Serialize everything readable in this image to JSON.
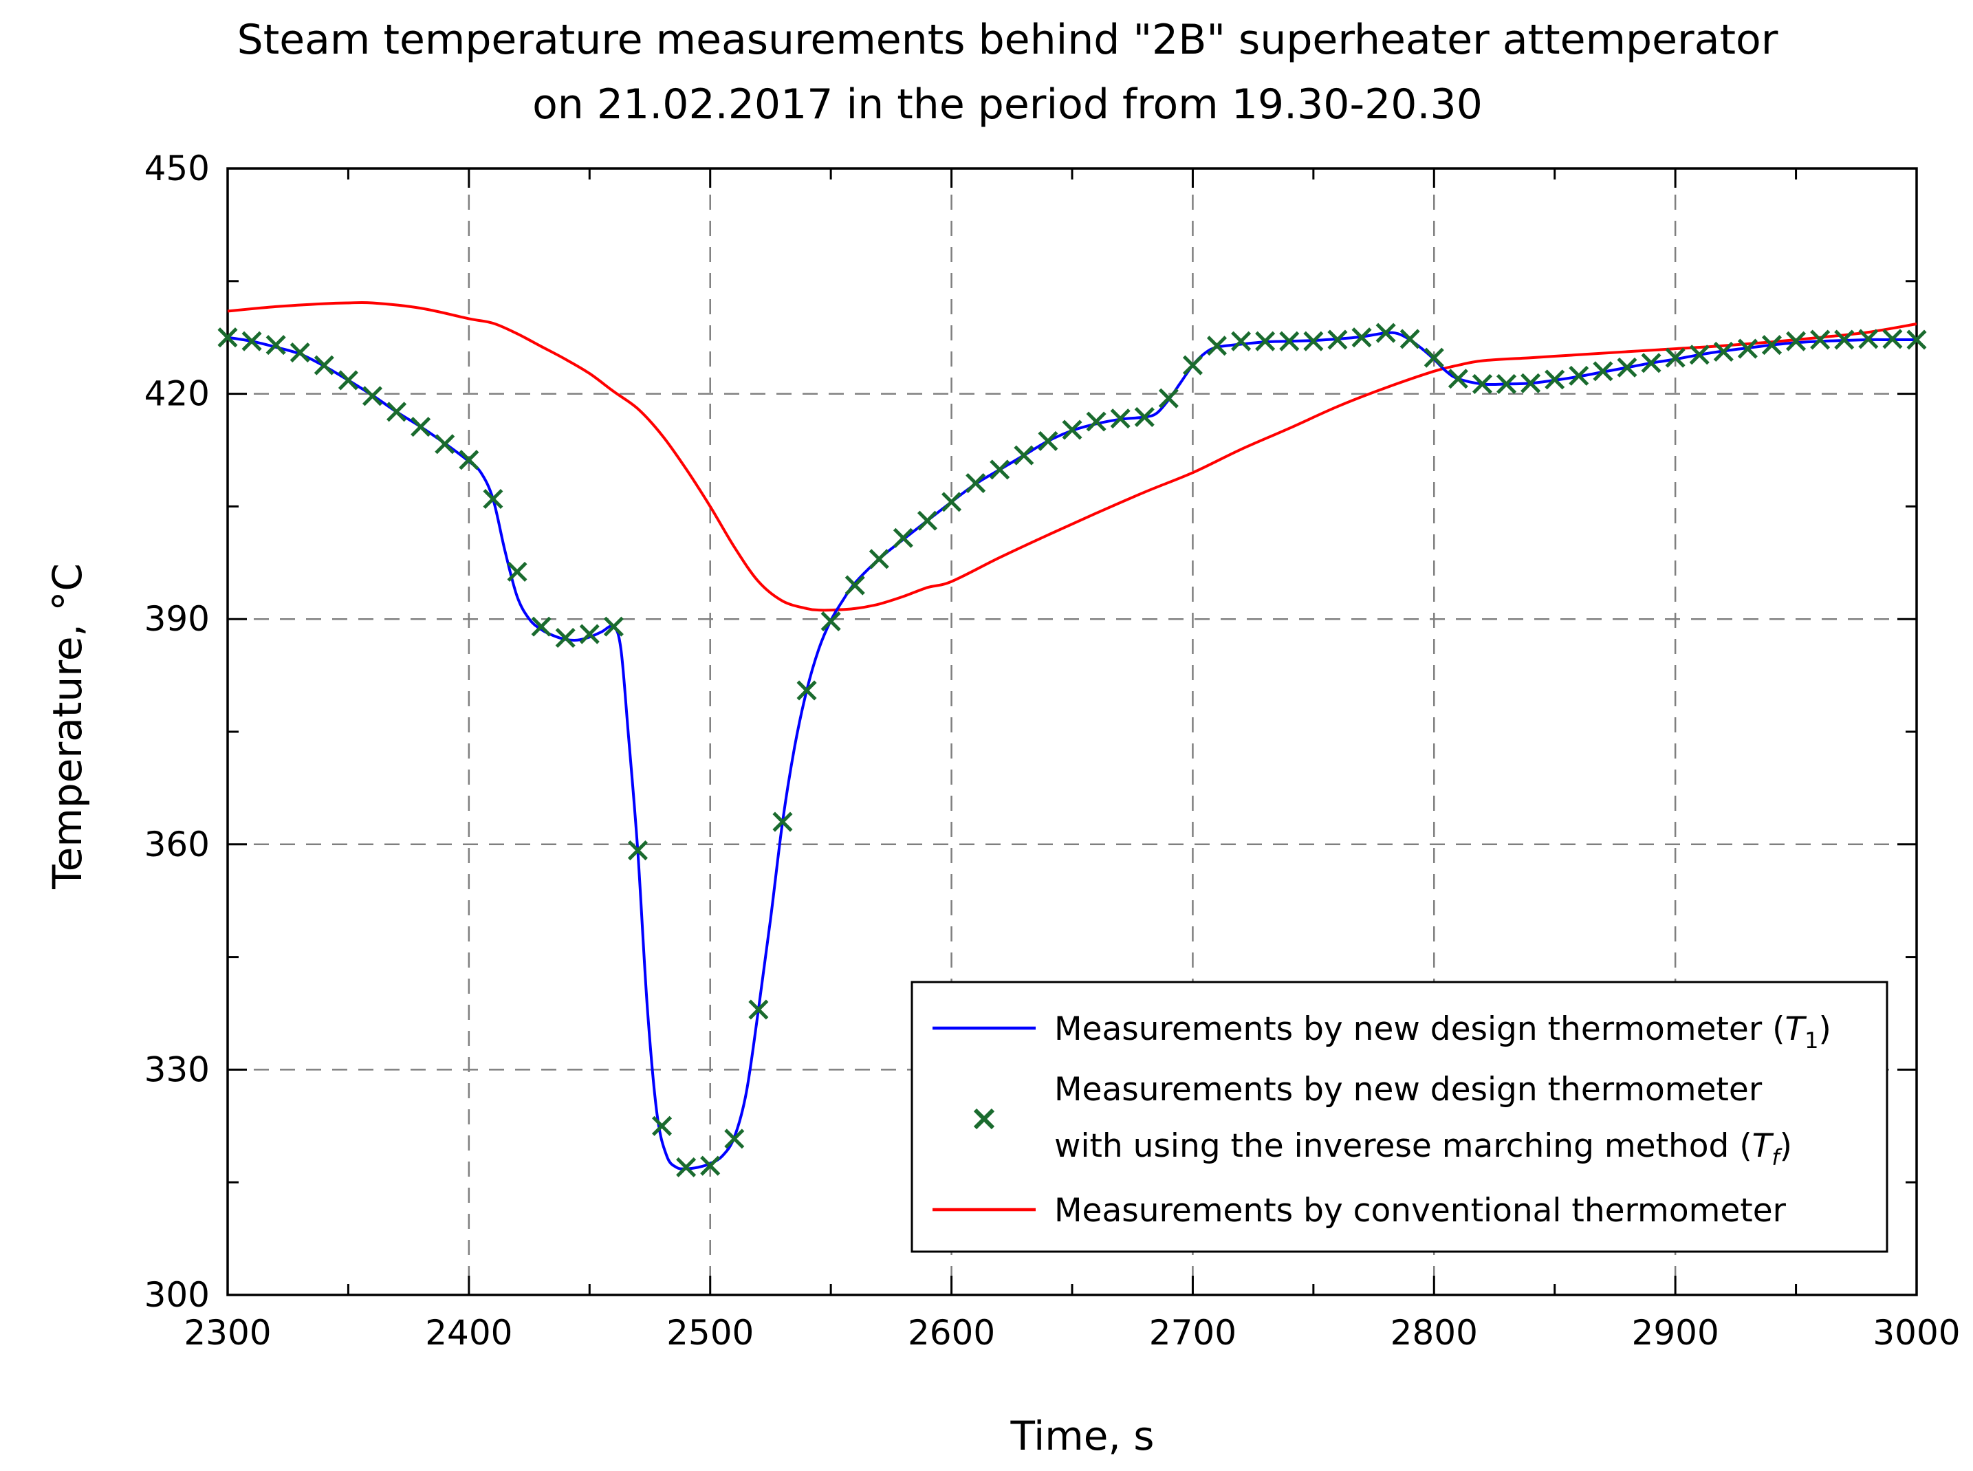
{
  "chart_data": {
    "type": "line",
    "title": "Steam temperature measurements behind \"2B\" superheater attemperator",
    "subtitle": "on 21.02.2017 in the period from 19.30-20.30",
    "xlabel": "Time, s",
    "ylabel": "Temperature, °C",
    "xlim": [
      2300,
      3000
    ],
    "ylim": [
      300,
      450
    ],
    "xticks": [
      2300,
      2400,
      2500,
      2600,
      2700,
      2800,
      2900,
      3000
    ],
    "yticks": [
      300,
      330,
      360,
      390,
      420,
      450
    ],
    "ytick_minor_step": 15,
    "xtick_minor_step": 50,
    "grid": true,
    "legend": {
      "placement": "bottom-right",
      "entries": [
        {
          "text": "Measurements by new design thermometer (",
          "math": "T",
          "sub": "1",
          "suffix": ")",
          "style": "line",
          "color": "#0000ff"
        },
        {
          "text": "Measurements by new design thermometer",
          "text2": "with using the inverese marching method (",
          "math": "T",
          "sub": "f",
          "suffix": ")",
          "style": "marker",
          "color": "#1a6b2e"
        },
        {
          "text": "Measurements by conventional thermometer",
          "style": "line",
          "color": "#ff0000"
        }
      ]
    },
    "series": [
      {
        "name": "Measurements by new design thermometer (T1)",
        "style": "line",
        "color": "#0000ff",
        "x": [
          2300,
          2310,
          2320,
          2330,
          2340,
          2350,
          2360,
          2370,
          2380,
          2390,
          2400,
          2405,
          2410,
          2415,
          2420,
          2425,
          2430,
          2435,
          2440,
          2445,
          2450,
          2455,
          2460,
          2463,
          2466,
          2470,
          2474,
          2478,
          2482,
          2486,
          2490,
          2495,
          2500,
          2505,
          2510,
          2515,
          2520,
          2525,
          2530,
          2535,
          2540,
          2545,
          2550,
          2555,
          2560,
          2570,
          2580,
          2590,
          2600,
          2610,
          2620,
          2630,
          2640,
          2650,
          2660,
          2670,
          2680,
          2685,
          2690,
          2695,
          2700,
          2705,
          2710,
          2720,
          2730,
          2740,
          2750,
          2760,
          2770,
          2780,
          2785,
          2790,
          2795,
          2800,
          2805,
          2810,
          2820,
          2830,
          2840,
          2850,
          2860,
          2870,
          2880,
          2890,
          2900,
          2910,
          2920,
          2930,
          2940,
          2950,
          2960,
          2970,
          2980,
          2990,
          3000
        ],
        "y": [
          427.5,
          427,
          426.2,
          425.3,
          423.7,
          421.8,
          419.8,
          417.6,
          415.6,
          413.4,
          411,
          409.5,
          406,
          399,
          393,
          390,
          388.6,
          387.8,
          387.3,
          387.2,
          387.6,
          388.3,
          389,
          386,
          375,
          359,
          338,
          324,
          318.5,
          317,
          316.8,
          317,
          317.5,
          318.5,
          321,
          327,
          338,
          350,
          363,
          373,
          380.5,
          386,
          389.8,
          392.5,
          394.8,
          398,
          400.6,
          403.1,
          405.6,
          408,
          409.9,
          411.8,
          413.7,
          415.1,
          416,
          416.6,
          416.9,
          417.4,
          419.2,
          421.5,
          423.8,
          425.4,
          426.2,
          426.6,
          426.9,
          427,
          427.1,
          427.3,
          427.6,
          428.1,
          428,
          427.2,
          426,
          424.6,
          423,
          422,
          421.3,
          421.3,
          421.4,
          421.8,
          422.3,
          422.9,
          423.5,
          424.1,
          424.6,
          425.2,
          425.7,
          426.1,
          426.5,
          426.8,
          427,
          427.1,
          427.2,
          427.2,
          427.2
        ]
      },
      {
        "name": "Measurements by new design thermometer with using the inverese marching method (Tf)",
        "style": "marker",
        "marker": "x",
        "color": "#1a6b2e",
        "x": [
          2300,
          2310,
          2320,
          2330,
          2340,
          2350,
          2360,
          2370,
          2380,
          2390,
          2400,
          2410,
          2420,
          2430,
          2440,
          2450,
          2460,
          2470,
          2480,
          2490,
          2500,
          2510,
          2520,
          2530,
          2540,
          2550,
          2560,
          2570,
          2580,
          2590,
          2600,
          2610,
          2620,
          2630,
          2640,
          2650,
          2660,
          2670,
          2680,
          2690,
          2700,
          2710,
          2720,
          2730,
          2740,
          2750,
          2760,
          2770,
          2780,
          2790,
          2800,
          2810,
          2820,
          2830,
          2840,
          2850,
          2860,
          2870,
          2880,
          2890,
          2900,
          2910,
          2920,
          2930,
          2940,
          2950,
          2960,
          2970,
          2980,
          2990,
          3000
        ],
        "y": [
          427.5,
          427,
          426.5,
          425.5,
          423.8,
          421.8,
          419.7,
          417.6,
          415.6,
          413.3,
          411.2,
          406,
          396.3,
          389,
          387.5,
          388,
          389,
          359.2,
          322.5,
          317,
          317.2,
          320.8,
          338,
          363,
          380.5,
          389.7,
          394.5,
          398,
          400.8,
          403.1,
          405.6,
          408.1,
          409.9,
          411.8,
          413.7,
          415.2,
          416.3,
          416.7,
          416.9,
          419.4,
          423.8,
          426.4,
          427,
          427,
          427,
          427,
          427.2,
          427.5,
          428.1,
          427.3,
          424.8,
          422,
          421.3,
          421.3,
          421.4,
          421.9,
          422.4,
          423,
          423.5,
          424.1,
          424.8,
          425.2,
          425.6,
          426,
          426.5,
          427,
          427.2,
          427.2,
          427.3,
          427.3,
          427.2
        ]
      },
      {
        "name": "Measurements by conventional thermometer",
        "style": "line",
        "color": "#ff0000",
        "x": [
          2300,
          2320,
          2340,
          2350,
          2360,
          2380,
          2400,
          2410,
          2420,
          2430,
          2440,
          2450,
          2460,
          2470,
          2480,
          2490,
          2500,
          2510,
          2520,
          2530,
          2540,
          2545,
          2550,
          2560,
          2570,
          2580,
          2590,
          2600,
          2620,
          2640,
          2660,
          2680,
          2700,
          2720,
          2740,
          2760,
          2780,
          2800,
          2810,
          2820,
          2840,
          2860,
          2880,
          2900,
          2920,
          2940,
          2960,
          2980,
          3000
        ],
        "y": [
          431,
          431.6,
          432,
          432.1,
          432.1,
          431.4,
          430,
          429.4,
          428,
          426.3,
          424.6,
          422.7,
          420.3,
          418,
          414.5,
          410,
          405,
          399.6,
          395,
          392.4,
          391.4,
          391.2,
          391.2,
          391.4,
          392,
          393,
          394.2,
          395,
          398.2,
          401.2,
          404.1,
          406.9,
          409.5,
          412.6,
          415.4,
          418.3,
          420.8,
          423,
          423.8,
          424.4,
          424.8,
          425.2,
          425.6,
          426,
          426.4,
          426.9,
          427.5,
          428.2,
          429.3
        ]
      }
    ]
  }
}
